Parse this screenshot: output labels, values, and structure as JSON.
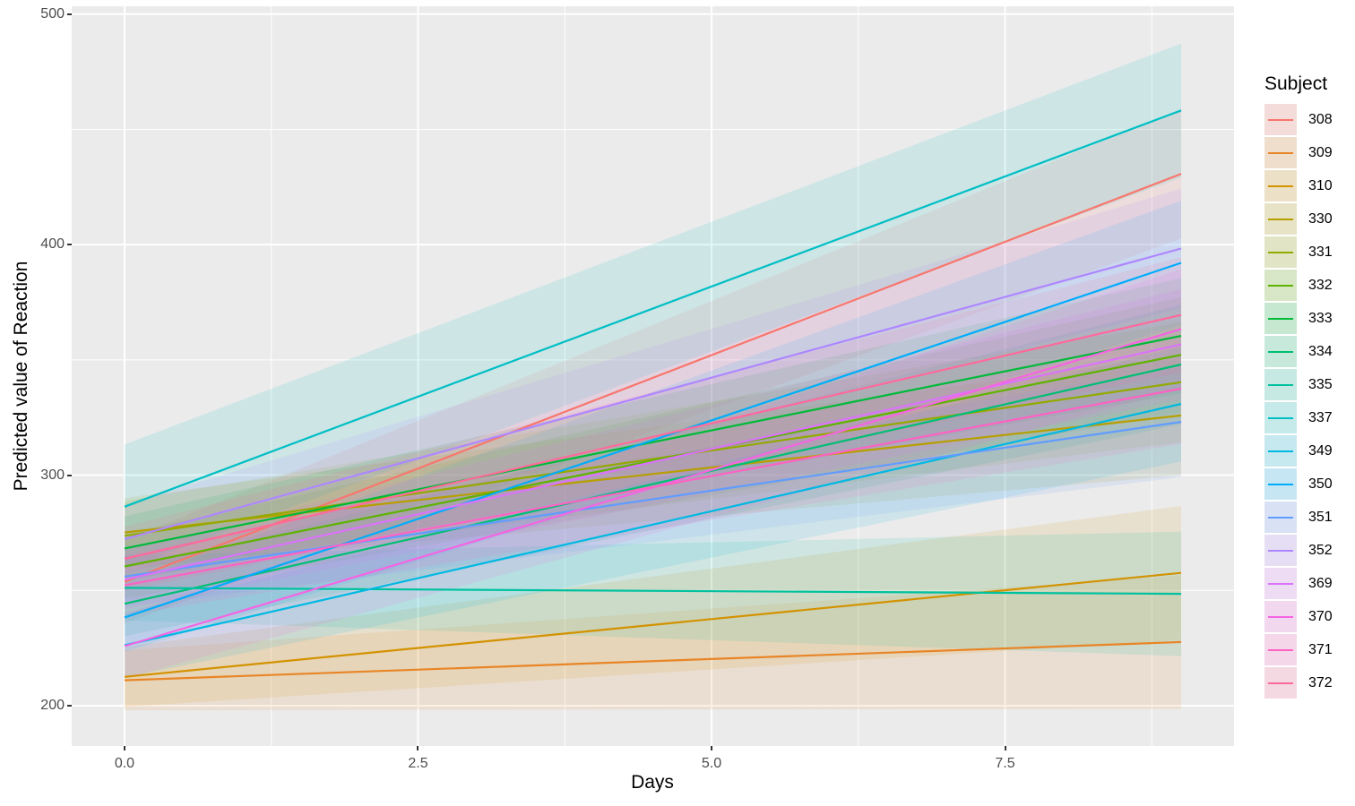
{
  "chart_data": {
    "type": "line",
    "title": "",
    "xlabel": "Days",
    "ylabel": "Predicted value of Reaction",
    "legend_title": "Subject",
    "legend_position": "right",
    "grid": true,
    "panel_bg": "#EBEBEB",
    "grid_color": "#FFFFFF",
    "tick_text_color": "#4D4D4D",
    "axis_title_color": "#000000",
    "ribbon_alpha": 0.12,
    "legend_key_bg": "#F2F2F2",
    "legend_key_alpha": 0.18,
    "xlim": [
      -0.45,
      9.45
    ],
    "ylim": [
      182.5,
      503.4
    ],
    "x_major_ticks": [
      0,
      2.5,
      5,
      7.5
    ],
    "x_tick_labels": [
      "0.0",
      "2.5",
      "5.0",
      "7.5"
    ],
    "x_minor_ticks": [
      1.25,
      3.75,
      6.25,
      8.75
    ],
    "y_major_ticks": [
      200,
      300,
      400,
      500
    ],
    "y_tick_labels": [
      "200",
      "300",
      "400",
      "500"
    ],
    "y_minor_ticks": [
      250,
      350,
      450
    ],
    "x": [
      0,
      9
    ],
    "series": [
      {
        "name": "308",
        "color": "#F8766D",
        "values": [
          253.7,
          430.7
        ],
        "ci_halfwidth": [
          18,
          28
        ]
      },
      {
        "name": "309",
        "color": "#E88526",
        "values": [
          211.0,
          227.6
        ],
        "ci_halfwidth": [
          13,
          29
        ]
      },
      {
        "name": "310",
        "color": "#D39200",
        "values": [
          212.5,
          257.6
        ],
        "ci_halfwidth": [
          13,
          29
        ]
      },
      {
        "name": "330",
        "color": "#B79F00",
        "values": [
          275.1,
          325.9
        ],
        "ci_halfwidth": [
          15,
          26
        ]
      },
      {
        "name": "331",
        "color": "#93AA00",
        "values": [
          273.7,
          340.3
        ],
        "ci_halfwidth": [
          15,
          26
        ]
      },
      {
        "name": "332",
        "color": "#5EB300",
        "values": [
          260.4,
          352.2
        ],
        "ci_halfwidth": [
          14,
          25
        ]
      },
      {
        "name": "333",
        "color": "#00BA38",
        "values": [
          268.2,
          360.4
        ],
        "ci_halfwidth": [
          14,
          25
        ]
      },
      {
        "name": "334",
        "color": "#00BF74",
        "values": [
          244.2,
          348.0
        ],
        "ci_halfwidth": [
          14,
          26
        ]
      },
      {
        "name": "335",
        "color": "#00C19F",
        "values": [
          251.1,
          248.5
        ],
        "ci_halfwidth": [
          14,
          27
        ]
      },
      {
        "name": "337",
        "color": "#00BFC4",
        "values": [
          286.3,
          458.2
        ],
        "ci_halfwidth": [
          27,
          29
        ]
      },
      {
        "name": "349",
        "color": "#00B9E3",
        "values": [
          226.2,
          330.9
        ],
        "ci_halfwidth": [
          14,
          25
        ]
      },
      {
        "name": "350",
        "color": "#00ADFA",
        "values": [
          238.3,
          392.1
        ],
        "ci_halfwidth": [
          15,
          27
        ]
      },
      {
        "name": "351",
        "color": "#619CFF",
        "values": [
          256.0,
          323.1
        ],
        "ci_halfwidth": [
          13,
          24
        ]
      },
      {
        "name": "352",
        "color": "#AE87FF",
        "values": [
          272.3,
          398.3
        ],
        "ci_halfwidth": [
          15,
          26
        ]
      },
      {
        "name": "369",
        "color": "#DB72FB",
        "values": [
          254.7,
          356.7
        ],
        "ci_halfwidth": [
          13,
          24
        ]
      },
      {
        "name": "370",
        "color": "#F564E3",
        "values": [
          225.8,
          363.4
        ],
        "ci_halfwidth": [
          14,
          26
        ]
      },
      {
        "name": "371",
        "color": "#FF61C3",
        "values": [
          252.2,
          337.5
        ],
        "ci_halfwidth": [
          13,
          24
        ]
      },
      {
        "name": "372",
        "color": "#FF699C",
        "values": [
          263.7,
          369.5
        ],
        "ci_halfwidth": [
          14,
          25
        ]
      }
    ]
  }
}
